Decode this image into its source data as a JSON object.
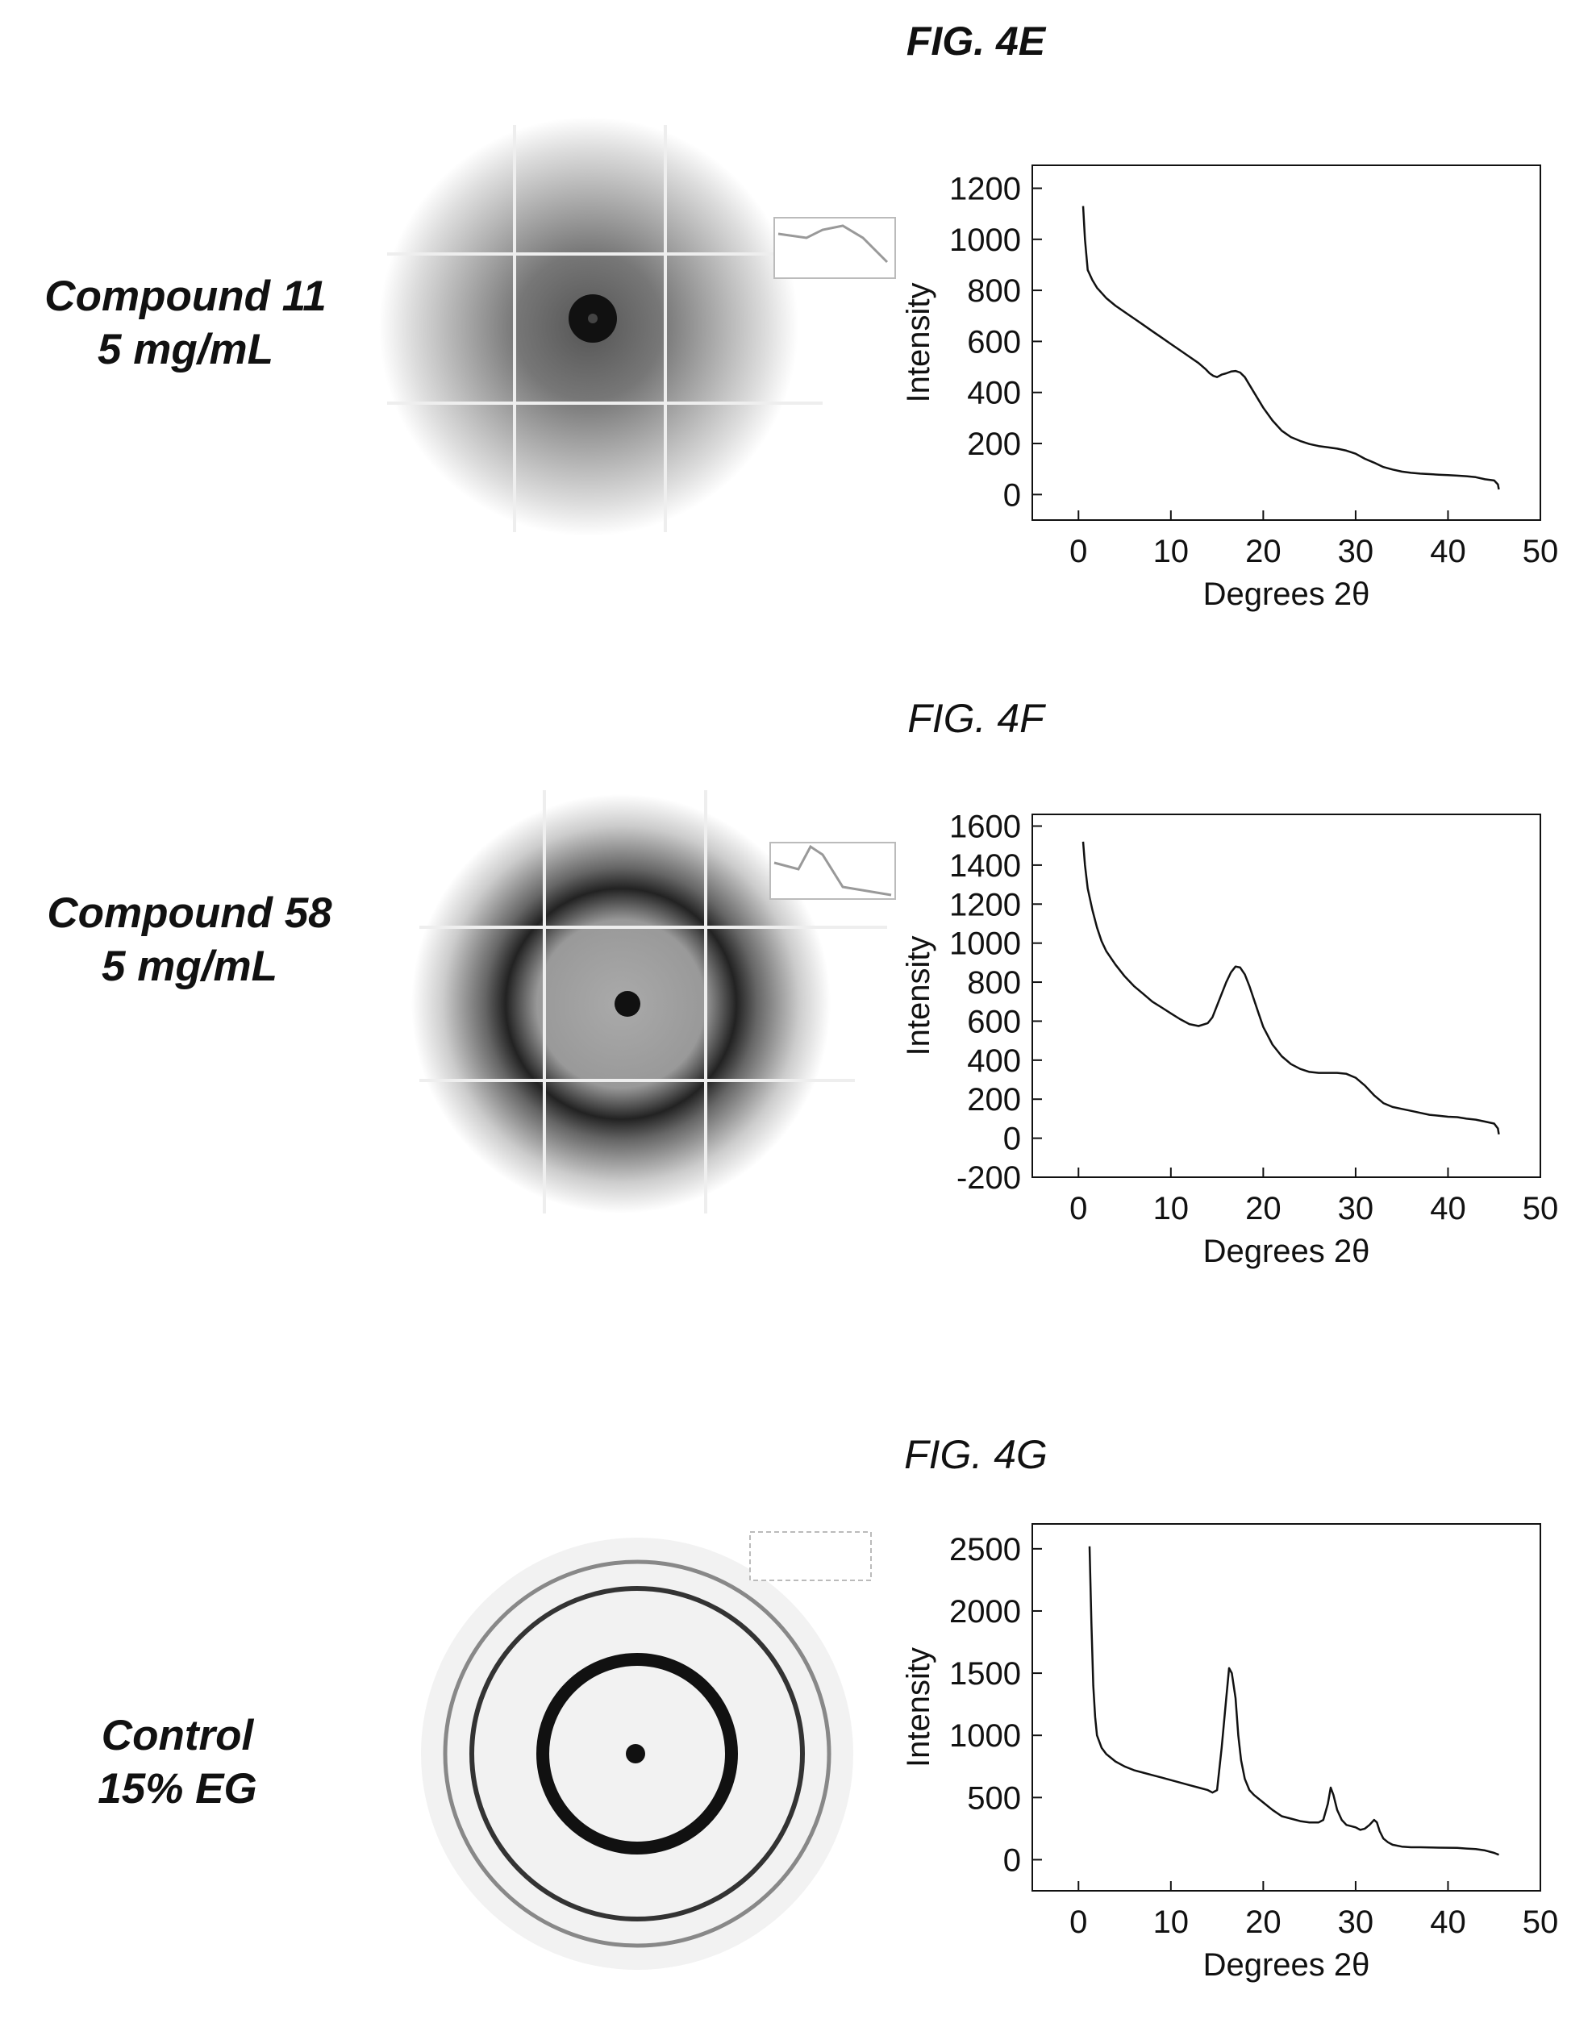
{
  "panels": [
    {
      "fig_label": "FIG. 4E",
      "sample_line1": "Compound 11",
      "sample_line2": "5 mg/mL"
    },
    {
      "fig_label": "FIG. 4F",
      "sample_line1": "Compound 58",
      "sample_line2": "5 mg/mL"
    },
    {
      "fig_label": "FIG. 4G",
      "sample_line1": "Control",
      "sample_line2": "15% EG"
    }
  ],
  "chart_data": [
    {
      "type": "line",
      "xlabel": "Degrees 2θ",
      "ylabel": "Intensity",
      "xlim": [
        -5,
        50
      ],
      "ylim": [
        -100,
        1290
      ],
      "xticks": [
        0,
        10,
        20,
        30,
        40,
        50
      ],
      "yticks": [
        0,
        200,
        400,
        600,
        800,
        1000,
        1200
      ],
      "grid": false,
      "x": [
        0.5,
        0.7,
        1,
        1.5,
        2,
        3,
        4,
        5,
        6,
        7,
        8,
        9,
        10,
        11,
        12,
        13,
        13.8,
        14.2,
        14.6,
        15,
        15.5,
        16,
        16.5,
        17,
        17.5,
        18,
        18.5,
        19,
        20,
        21,
        22,
        23,
        24,
        25,
        26,
        27,
        28,
        29,
        30,
        31,
        32,
        33,
        34,
        35,
        36,
        37,
        38,
        39,
        40,
        41,
        42,
        43,
        44,
        45,
        45.4,
        45.5
      ],
      "y": [
        1130,
        1000,
        880,
        840,
        810,
        770,
        740,
        715,
        690,
        665,
        640,
        615,
        590,
        565,
        540,
        515,
        490,
        475,
        465,
        460,
        470,
        475,
        482,
        484,
        478,
        460,
        430,
        400,
        340,
        290,
        250,
        225,
        210,
        198,
        190,
        185,
        180,
        172,
        160,
        140,
        125,
        108,
        98,
        90,
        85,
        82,
        80,
        78,
        76,
        74,
        72,
        68,
        60,
        55,
        40,
        20
      ]
    },
    {
      "type": "line",
      "xlabel": "Degrees 2θ",
      "ylabel": "Intensity",
      "xlim": [
        -5,
        50
      ],
      "ylim": [
        -200,
        1660
      ],
      "xticks": [
        0,
        10,
        20,
        30,
        40,
        50
      ],
      "yticks": [
        -200,
        0,
        200,
        400,
        600,
        800,
        1000,
        1200,
        1400,
        1600
      ],
      "grid": false,
      "x": [
        0.5,
        0.7,
        1,
        1.5,
        2,
        2.5,
        3,
        4,
        5,
        6,
        7,
        8,
        9,
        10,
        11,
        12,
        13,
        14,
        14.5,
        15,
        15.5,
        16,
        16.5,
        17,
        17.5,
        18,
        18.5,
        19,
        19.5,
        20,
        21,
        22,
        23,
        24,
        25,
        26,
        27,
        28,
        29,
        30,
        31,
        32,
        33,
        34,
        35,
        36,
        37,
        38,
        39,
        40,
        41,
        42,
        43,
        44,
        45,
        45.4,
        45.5
      ],
      "y": [
        1520,
        1400,
        1280,
        1170,
        1080,
        1010,
        960,
        890,
        830,
        780,
        740,
        700,
        670,
        640,
        610,
        585,
        575,
        590,
        620,
        680,
        740,
        800,
        850,
        880,
        875,
        840,
        780,
        710,
        640,
        570,
        480,
        420,
        380,
        355,
        340,
        335,
        335,
        335,
        330,
        310,
        270,
        220,
        180,
        160,
        150,
        140,
        130,
        120,
        115,
        110,
        108,
        100,
        95,
        85,
        75,
        50,
        20
      ]
    },
    {
      "type": "line",
      "xlabel": "Degrees 2θ",
      "ylabel": "Intensity",
      "xlim": [
        -5,
        50
      ],
      "ylim": [
        -250,
        2700
      ],
      "xticks": [
        0,
        10,
        20,
        30,
        40,
        50
      ],
      "yticks": [
        0,
        500,
        1000,
        1500,
        2000,
        2500
      ],
      "grid": false,
      "x": [
        1.2,
        1.4,
        1.6,
        1.8,
        2,
        2.5,
        3,
        3.5,
        4,
        5,
        6,
        7,
        8,
        9,
        10,
        11,
        12,
        13,
        14,
        14.5,
        15,
        15.5,
        16,
        16.3,
        16.6,
        17,
        17.3,
        17.6,
        18,
        18.5,
        19,
        20,
        21,
        22,
        23,
        24,
        25,
        26,
        26.5,
        27,
        27.3,
        27.6,
        28,
        28.5,
        29,
        30,
        30.5,
        31,
        31.5,
        32,
        32.3,
        32.6,
        33,
        33.5,
        34,
        35,
        36,
        37,
        38,
        39,
        40,
        41,
        42,
        43,
        44,
        45,
        45.5
      ],
      "y": [
        2520,
        1900,
        1400,
        1150,
        1000,
        900,
        850,
        820,
        790,
        750,
        720,
        700,
        680,
        660,
        640,
        620,
        600,
        580,
        560,
        540,
        560,
        900,
        1300,
        1540,
        1500,
        1300,
        1000,
        800,
        650,
        560,
        520,
        460,
        400,
        350,
        330,
        310,
        300,
        300,
        320,
        450,
        580,
        520,
        400,
        320,
        280,
        260,
        240,
        250,
        280,
        320,
        300,
        230,
        170,
        140,
        120,
        105,
        100,
        100,
        98,
        97,
        96,
        95,
        90,
        85,
        75,
        55,
        40
      ]
    }
  ]
}
